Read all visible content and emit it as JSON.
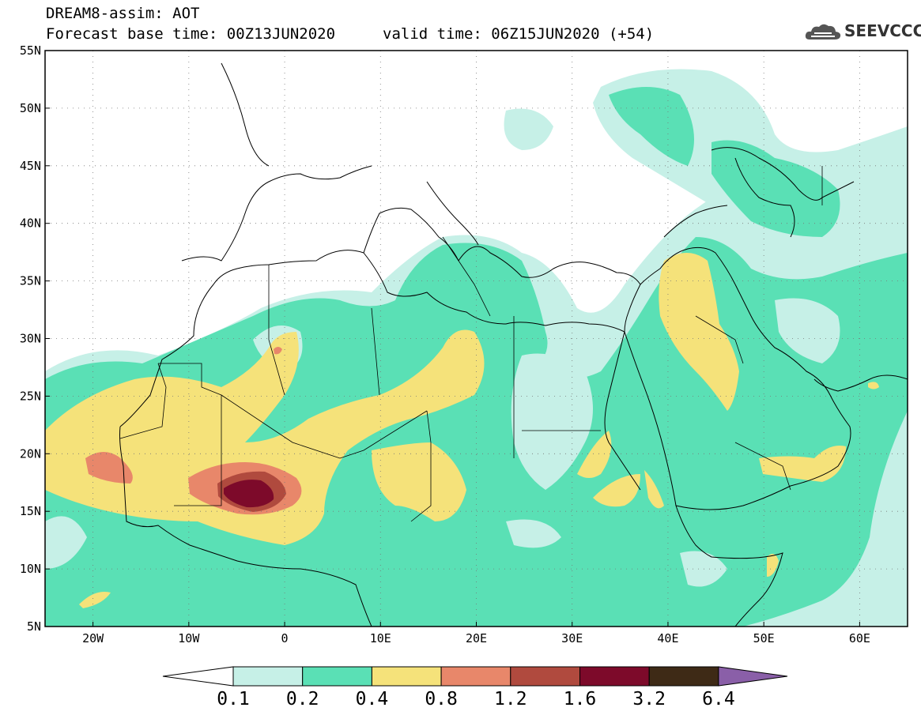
{
  "header": {
    "title_line1": "DREAM8-assim: AOT",
    "title_line2": "Forecast base time: 00Z13JUN2020",
    "valid_time": "valid time: 06Z15JUN2020 (+54)",
    "logo_text": "SEEVCCC"
  },
  "map": {
    "variable": "AOT",
    "projection": "lat-lon",
    "lon_range": [
      -25,
      65
    ],
    "lat_range": [
      5,
      55
    ],
    "lon_ticks": [
      {
        "value": -20,
        "label": "20W"
      },
      {
        "value": -10,
        "label": "10W"
      },
      {
        "value": 0,
        "label": "0"
      },
      {
        "value": 10,
        "label": "10E"
      },
      {
        "value": 20,
        "label": "20E"
      },
      {
        "value": 30,
        "label": "30E"
      },
      {
        "value": 40,
        "label": "40E"
      },
      {
        "value": 50,
        "label": "50E"
      },
      {
        "value": 60,
        "label": "60E"
      }
    ],
    "lat_ticks": [
      {
        "value": 55,
        "label": "55N"
      },
      {
        "value": 50,
        "label": "50N"
      },
      {
        "value": 45,
        "label": "45N"
      },
      {
        "value": 40,
        "label": "40N"
      },
      {
        "value": 35,
        "label": "35N"
      },
      {
        "value": 30,
        "label": "30N"
      },
      {
        "value": 25,
        "label": "25N"
      },
      {
        "value": 20,
        "label": "20N"
      },
      {
        "value": 15,
        "label": "15N"
      },
      {
        "value": 10,
        "label": "10N"
      },
      {
        "value": 5,
        "label": "5N"
      }
    ],
    "grid": "dotted"
  },
  "colorbar": {
    "colors": [
      "#c6f0e7",
      "#5ae0b5",
      "#f5e27a",
      "#e8876a",
      "#b04a3e",
      "#7d0a2a",
      "#3e2a16"
    ],
    "below_color": "#ffffff",
    "above_color": "#8a5fa8",
    "labels": [
      "0.1",
      "0.2",
      "0.4",
      "0.8",
      "1.2",
      "1.6",
      "3.2",
      "6.4"
    ]
  },
  "palette": {
    "c1": "#c6f0e7",
    "c2": "#5ae0b5",
    "c3": "#f5e27a",
    "c4": "#e8876a",
    "c5": "#b04a3e",
    "c6": "#7d0a2a"
  }
}
